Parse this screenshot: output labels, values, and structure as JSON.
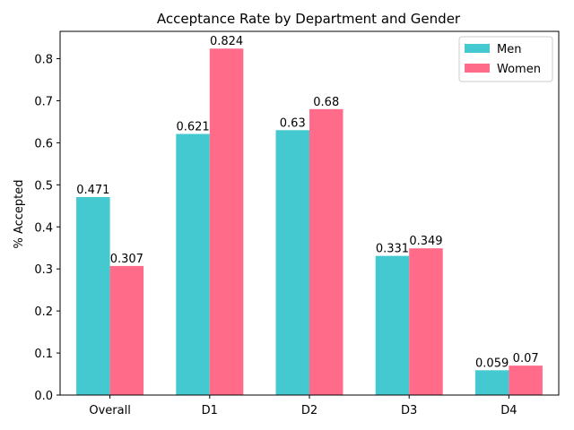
{
  "chart_data": {
    "type": "bar",
    "title": "Acceptance Rate by Department and Gender",
    "xlabel": "",
    "ylabel": "% Accepted",
    "categories": [
      "Overall",
      "D1",
      "D2",
      "D3",
      "D4"
    ],
    "series": [
      {
        "name": "Men",
        "color": "#44c9d1",
        "values": [
          0.471,
          0.621,
          0.63,
          0.331,
          0.059
        ],
        "labels": [
          "0.471",
          "0.621",
          "0.63",
          "0.331",
          "0.059"
        ]
      },
      {
        "name": "Women",
        "color": "#ff6b89",
        "values": [
          0.307,
          0.824,
          0.68,
          0.349,
          0.07
        ],
        "labels": [
          "0.307",
          "0.824",
          "0.68",
          "0.349",
          "0.07"
        ]
      }
    ],
    "ylim": [
      0,
      0.865
    ],
    "yticks": [
      0.0,
      0.1,
      0.2,
      0.3,
      0.4,
      0.5,
      0.6,
      0.7,
      0.8
    ],
    "ytick_labels": [
      "0.0",
      "0.1",
      "0.2",
      "0.3",
      "0.4",
      "0.5",
      "0.6",
      "0.7",
      "0.8"
    ],
    "grid": false,
    "legend_position": "top-right"
  }
}
